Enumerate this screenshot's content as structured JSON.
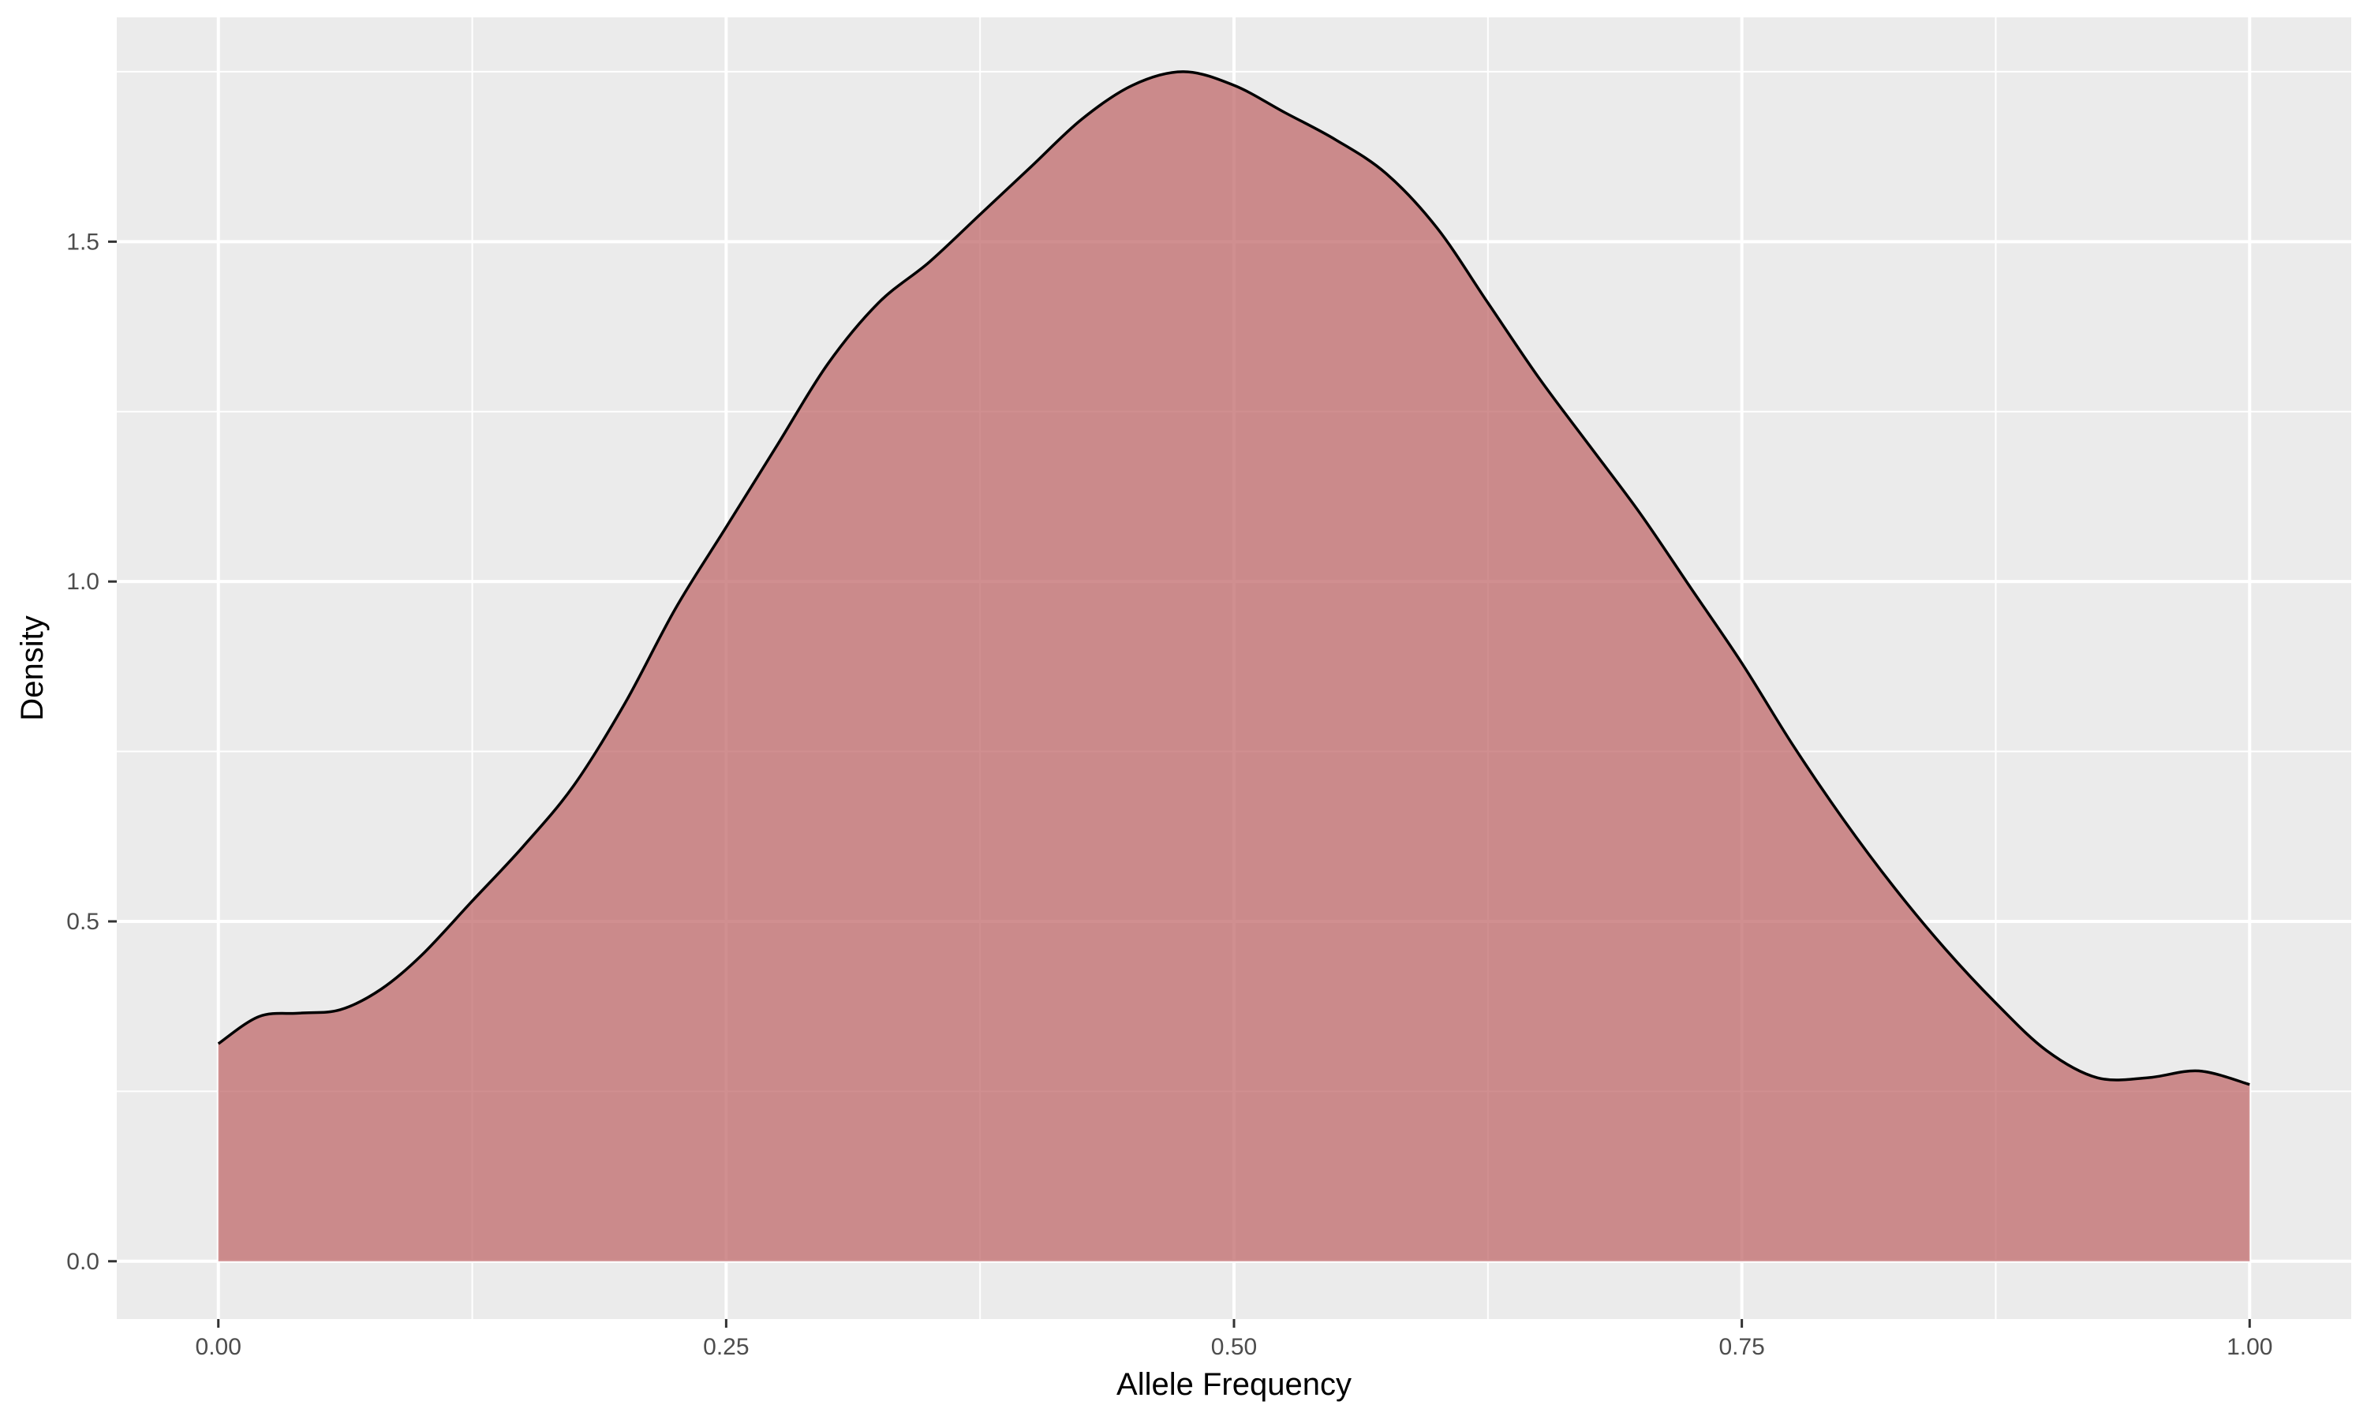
{
  "chart_data": {
    "type": "area",
    "title": "",
    "xlabel": "Allele Frequency",
    "ylabel": "Density",
    "xlim": [
      -0.05,
      1.05
    ],
    "ylim": [
      -0.085,
      1.83
    ],
    "x_ticks": [
      0.0,
      0.25,
      0.5,
      0.75,
      1.0
    ],
    "x_tick_labels": [
      "0.00",
      "0.25",
      "0.50",
      "0.75",
      "1.00"
    ],
    "y_ticks": [
      0.0,
      0.5,
      1.0,
      1.5
    ],
    "y_tick_labels": [
      "0.0",
      "0.5",
      "1.0",
      "1.5"
    ],
    "x_minor_ticks": [
      0.125,
      0.375,
      0.625,
      0.875
    ],
    "y_minor_ticks": [
      0.25,
      0.75,
      1.25,
      1.75
    ],
    "grid": true,
    "legend": "none",
    "colors": {
      "panel_background": "#ebebeb",
      "grid_line": "#ffffff",
      "fill": "#c0696b",
      "fill_opacity": 0.75,
      "curve_stroke": "#000000",
      "axis_tick": "#333333"
    },
    "series": [
      {
        "x": [
          0.0,
          0.02,
          0.04,
          0.06,
          0.08,
          0.1,
          0.125,
          0.15,
          0.175,
          0.2,
          0.225,
          0.25,
          0.275,
          0.3,
          0.325,
          0.35,
          0.375,
          0.4,
          0.425,
          0.45,
          0.475,
          0.5,
          0.525,
          0.55,
          0.575,
          0.6,
          0.625,
          0.65,
          0.675,
          0.7,
          0.725,
          0.75,
          0.775,
          0.8,
          0.825,
          0.85,
          0.875,
          0.9,
          0.925,
          0.95,
          0.975,
          1.0
        ],
        "y": [
          0.32,
          0.36,
          0.365,
          0.37,
          0.4,
          0.45,
          0.53,
          0.61,
          0.7,
          0.82,
          0.96,
          1.08,
          1.2,
          1.32,
          1.41,
          1.47,
          1.54,
          1.61,
          1.68,
          1.73,
          1.75,
          1.73,
          1.69,
          1.65,
          1.6,
          1.52,
          1.41,
          1.3,
          1.2,
          1.1,
          0.99,
          0.88,
          0.76,
          0.65,
          0.55,
          0.46,
          0.38,
          0.31,
          0.27,
          0.27,
          0.28,
          0.26
        ]
      }
    ]
  }
}
